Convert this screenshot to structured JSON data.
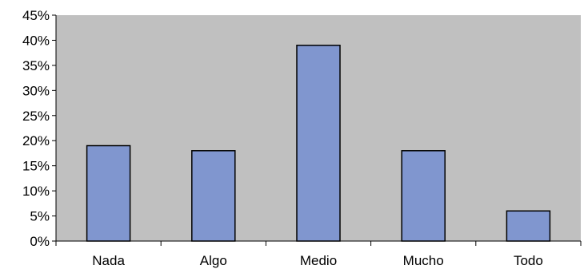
{
  "chart_data": {
    "type": "bar",
    "title": "",
    "xlabel": "",
    "ylabel": "",
    "categories": [
      "Nada",
      "Algo",
      "Medio",
      "Mucho",
      "Todo"
    ],
    "values": [
      19,
      18,
      39,
      18,
      6
    ],
    "ylim": [
      0,
      45
    ],
    "yticks": [
      0,
      5,
      10,
      15,
      20,
      25,
      30,
      35,
      40,
      45
    ],
    "ytick_labels": [
      "0%",
      "5%",
      "10%",
      "15%",
      "20%",
      "25%",
      "30%",
      "35%",
      "40%",
      "45%"
    ],
    "grid": false,
    "legend": "none",
    "colors": {
      "plot_background": "#c0c0c0",
      "bar_fill": "#8096cf",
      "bar_stroke": "#000000",
      "axis": "#000000"
    }
  }
}
